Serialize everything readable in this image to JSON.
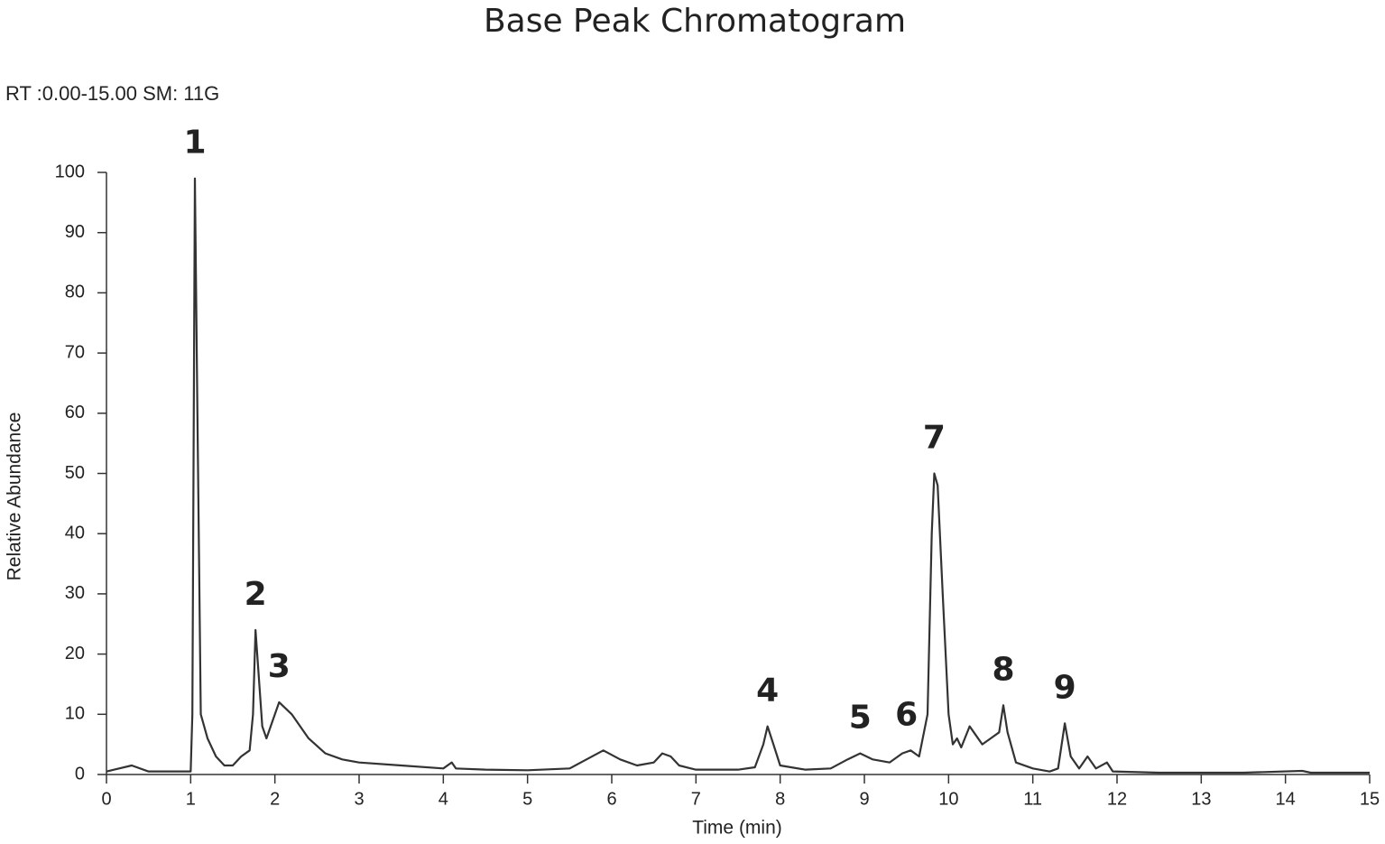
{
  "chart_data": {
    "type": "line",
    "title": "Base Peak Chromatogram",
    "subtitle": "RT :0.00-15.00 SM: 11G",
    "x_label": "Time (min)",
    "y_label": "Relative Abundance",
    "xlim": [
      0,
      15
    ],
    "ylim": [
      0,
      100
    ],
    "xticks": [
      0,
      1,
      2,
      3,
      4,
      5,
      6,
      7,
      8,
      9,
      10,
      11,
      12,
      13,
      14,
      15
    ],
    "yticks": [
      0,
      10,
      20,
      30,
      40,
      50,
      60,
      70,
      80,
      90,
      100
    ],
    "series": [
      {
        "color": "#333333",
        "x": [
          0,
          0.3,
          0.5,
          1.0,
          1.02,
          1.05,
          1.08,
          1.12,
          1.2,
          1.3,
          1.4,
          1.5,
          1.6,
          1.7,
          1.74,
          1.77,
          1.8,
          1.85,
          1.9,
          1.95,
          2.05,
          2.2,
          2.4,
          2.6,
          2.8,
          3.0,
          3.5,
          4.0,
          4.1,
          4.15,
          4.5,
          5.0,
          5.5,
          5.7,
          5.9,
          6.1,
          6.3,
          6.5,
          6.6,
          6.7,
          6.8,
          7.0,
          7.5,
          7.7,
          7.8,
          7.85,
          7.92,
          8.0,
          8.3,
          8.6,
          8.8,
          8.95,
          9.1,
          9.3,
          9.45,
          9.55,
          9.65,
          9.75,
          9.8,
          9.83,
          9.87,
          9.93,
          10.0,
          10.05,
          10.1,
          10.15,
          10.25,
          10.3,
          10.4,
          10.5,
          10.6,
          10.65,
          10.7,
          10.8,
          11.0,
          11.2,
          11.3,
          11.38,
          11.45,
          11.55,
          11.65,
          11.75,
          11.88,
          11.95,
          12.5,
          13.5,
          14.2,
          14.3,
          15
        ],
        "values": [
          0.5,
          1.5,
          0.5,
          0.5,
          10,
          99,
          60,
          10,
          6,
          3,
          1.5,
          1.5,
          3,
          4,
          10,
          24,
          18,
          8,
          6,
          8,
          12,
          10,
          6,
          3.5,
          2.5,
          2,
          1.5,
          1,
          2,
          1,
          0.8,
          0.7,
          1,
          2.5,
          4,
          2.5,
          1.5,
          2,
          3.5,
          3,
          1.5,
          0.8,
          0.8,
          1.2,
          5,
          8,
          5,
          1.5,
          0.8,
          1,
          2.5,
          3.5,
          2.5,
          2,
          3.5,
          4,
          3,
          10,
          40,
          50,
          48,
          30,
          10,
          5,
          6,
          4.5,
          8,
          7,
          5,
          6,
          7,
          11.5,
          7,
          2,
          1,
          0.5,
          1,
          8.5,
          3,
          1,
          3,
          1,
          2,
          0.5,
          0.3,
          0.3,
          0.6,
          0.3,
          0.3
        ]
      }
    ],
    "peaks": [
      {
        "label": "1",
        "x": 1.05,
        "y": 99
      },
      {
        "label": "2",
        "x": 1.77,
        "y": 24
      },
      {
        "label": "3",
        "x": 2.05,
        "y": 12
      },
      {
        "label": "4",
        "x": 7.85,
        "y": 8
      },
      {
        "label": "5",
        "x": 8.95,
        "y": 3.5
      },
      {
        "label": "6",
        "x": 9.5,
        "y": 4
      },
      {
        "label": "7",
        "x": 9.83,
        "y": 50
      },
      {
        "label": "8",
        "x": 10.65,
        "y": 11.5
      },
      {
        "label": "9",
        "x": 11.38,
        "y": 8.5
      }
    ]
  }
}
